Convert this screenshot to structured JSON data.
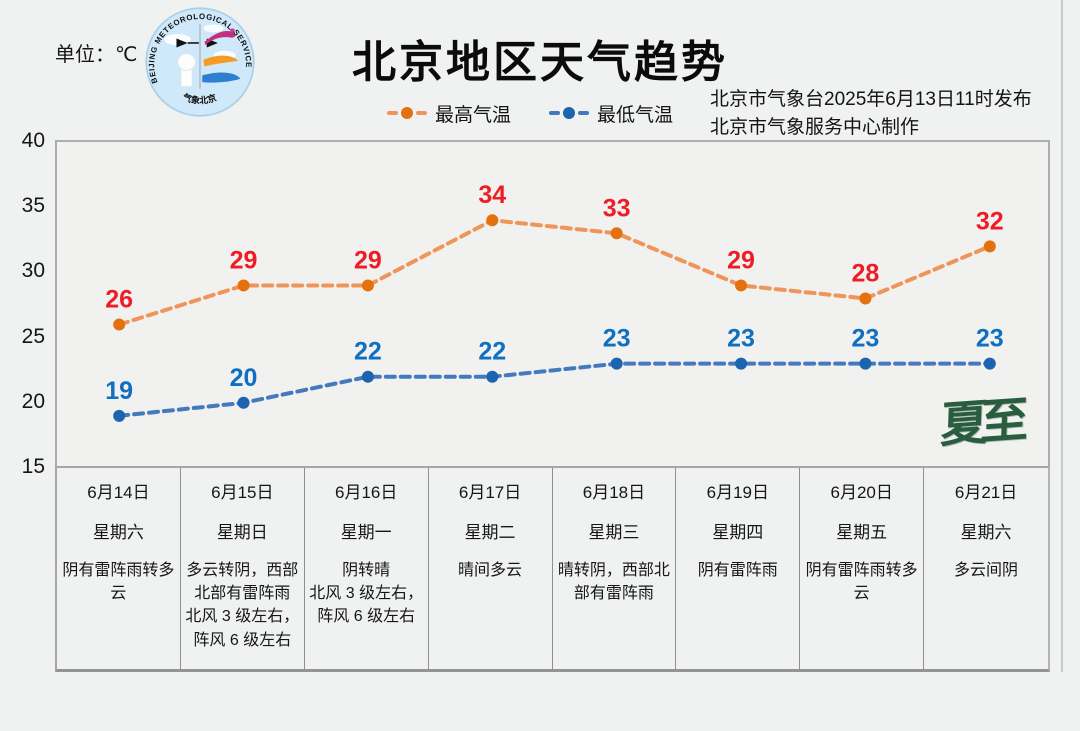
{
  "header": {
    "unit_label": "单位：℃",
    "title": "北京地区天气趋势",
    "issued_line1": "北京市气象台2025年6月13日11时发布",
    "issued_line2": "北京市气象服务中心制作",
    "logo": {
      "arc_text": "BEIJING  METEOROLOGICAL  SERVICE",
      "bottom_text": "气象北京"
    }
  },
  "chart_data": {
    "type": "line",
    "categories": [
      "6月14日",
      "6月15日",
      "6月16日",
      "6月17日",
      "6月18日",
      "6月19日",
      "6月20日",
      "6月21日"
    ],
    "series": [
      {
        "name": "最高气温",
        "values": [
          26,
          29,
          29,
          34,
          33,
          29,
          28,
          32
        ],
        "line_color": "#f0955a",
        "marker_color": "#e4700e",
        "label_color": "#ee1c25"
      },
      {
        "name": "最低气温",
        "values": [
          19,
          20,
          22,
          22,
          23,
          23,
          23,
          23
        ],
        "line_color": "#4379bd",
        "marker_color": "#1c63b0",
        "label_color": "#0f6fc0"
      }
    ],
    "ylim": [
      15,
      40
    ],
    "yticks": [
      40,
      35,
      30,
      25,
      20,
      15
    ],
    "grid": false,
    "legend_position": "top-center",
    "line_style": "dashed",
    "title": "北京地区天气趋势",
    "ylabel": "℃"
  },
  "watermark": {
    "text": "夏至",
    "color": "#2a5c3f"
  },
  "table": {
    "days": [
      {
        "date": "6月14日",
        "weekday": "星期六",
        "weather": "阴有雷阵雨转多云"
      },
      {
        "date": "6月15日",
        "weekday": "星期日",
        "weather": "多云转阴，西部北部有雷阵雨\n北风 3 级左右，阵风 6 级左右"
      },
      {
        "date": "6月16日",
        "weekday": "星期一",
        "weather": "阴转晴\n北风 3 级左右，阵风 6 级左右"
      },
      {
        "date": "6月17日",
        "weekday": "星期二",
        "weather": "晴间多云"
      },
      {
        "date": "6月18日",
        "weekday": "星期三",
        "weather": "晴转阴，西部北部有雷阵雨"
      },
      {
        "date": "6月19日",
        "weekday": "星期四",
        "weather": "阴有雷阵雨"
      },
      {
        "date": "6月20日",
        "weekday": "星期五",
        "weather": "阴有雷阵雨转多云"
      },
      {
        "date": "6月21日",
        "weekday": "星期六",
        "weather": "多云间阴"
      }
    ]
  }
}
